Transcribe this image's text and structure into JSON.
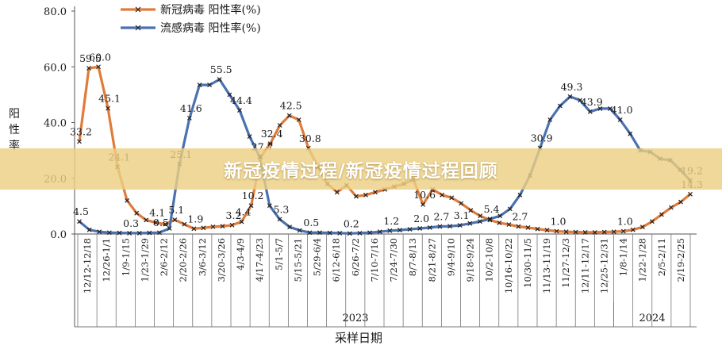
{
  "banner": {
    "title": "新冠疫情过程/新冠疫情过程回顾"
  },
  "chart_data": {
    "type": "line",
    "title": "",
    "xlabel": "采样日期",
    "ylabel": "阳性率",
    "ylim": [
      0,
      80
    ],
    "yticks": [
      "0.0",
      "20.0",
      "40.0",
      "60.0",
      "80.0"
    ],
    "year_labels": [
      "2023",
      "2024"
    ],
    "legend_position": "top",
    "grid": false,
    "tick_labels": [
      "12/12-12/18",
      "12/26-1/1",
      "1/9-1/15",
      "1/23-1/29",
      "2/6-2/12",
      "2/20-2/26",
      "3/6-3/12",
      "3/20-3/26",
      "4/3-4/9",
      "4/17-4/23",
      "5/1-5/7",
      "5/15-5/21",
      "5/29-6/4",
      "6/12-6/18",
      "6/26-7/2",
      "7/10-7/16",
      "7/24-7/30",
      "8/7-8/13",
      "8/21-8/27",
      "9/4-9/10",
      "9/18-9/24",
      "10/2-10/8",
      "10/16-10/22",
      "10/30-11/5",
      "11/13-11/19",
      "11/27-12/3",
      "12/11-12/17",
      "12/25-12/31",
      "1/8-1/14",
      "1/22-1/28",
      "2/5-2/11",
      "2/19-2/25"
    ],
    "series": [
      {
        "name": "新冠病毒 阳性率(%)",
        "color": "#E07B39",
        "values": [
          33.2,
          59.5,
          60.0,
          45.1,
          24.1,
          12.0,
          7.5,
          5.0,
          4.1,
          3.5,
          5.1,
          3.5,
          1.9,
          2.2,
          2.6,
          2.8,
          3.2,
          4.4,
          10.2,
          27.7,
          32.4,
          39.0,
          42.5,
          41.0,
          30.8,
          24.0,
          18.0,
          15.0,
          17.5,
          13.5,
          14.0,
          15.0,
          16.0,
          17.0,
          18.0,
          19.5,
          10.6,
          16.0,
          14.0,
          13.0,
          11.0,
          8.5,
          6.5,
          5.0,
          4.0,
          3.4,
          2.7,
          2.3,
          1.8,
          1.4,
          1.0,
          0.8,
          0.7,
          0.6,
          0.6,
          0.7,
          0.8,
          1.0,
          1.5,
          2.5,
          4.5,
          7.0,
          9.5,
          11.5,
          14.3
        ]
      },
      {
        "name": "流感病毒 阳性率(%)",
        "color": "#4A72B0",
        "values": [
          4.5,
          1.5,
          0.8,
          0.5,
          0.4,
          0.3,
          0.3,
          0.4,
          0.5,
          2.0,
          25.1,
          41.6,
          53.5,
          53.5,
          55.5,
          50.0,
          44.4,
          35.0,
          27.7,
          10.2,
          5.3,
          2.5,
          1.3,
          0.5,
          0.5,
          0.4,
          0.3,
          0.2,
          0.3,
          0.5,
          0.8,
          1.2,
          1.4,
          1.7,
          2.0,
          2.3,
          2.7,
          2.8,
          3.1,
          3.8,
          4.5,
          5.4,
          6.5,
          9.0,
          14.0,
          21.0,
          30.9,
          41.0,
          46.0,
          49.3,
          48.0,
          43.9,
          45.0,
          45.0,
          41.0,
          36.0,
          30.0,
          29.5,
          27.0,
          26.5,
          23.0,
          19.2
        ]
      }
    ],
    "data_labels": [
      {
        "text": "59.5",
        "series": 0,
        "index": 1
      },
      {
        "text": "60.0",
        "series": 0,
        "index": 2
      },
      {
        "text": "33.2",
        "series": 0,
        "index": 0
      },
      {
        "text": "45.1",
        "series": 0,
        "index": 3
      },
      {
        "text": "24.1",
        "series": 0,
        "index": 4
      },
      {
        "text": "4.1",
        "series": 0,
        "index": 8
      },
      {
        "text": "5.1",
        "series": 0,
        "index": 10
      },
      {
        "text": "1.9",
        "series": 0,
        "index": 12
      },
      {
        "text": "3.2",
        "series": 0,
        "index": 16
      },
      {
        "text": "4.4",
        "series": 0,
        "index": 17
      },
      {
        "text": "10.2",
        "series": 0,
        "index": 18
      },
      {
        "text": "27.7",
        "series": 0,
        "index": 19
      },
      {
        "text": "32.4",
        "series": 0,
        "index": 20
      },
      {
        "text": "42.5",
        "series": 0,
        "index": 22
      },
      {
        "text": "30.8",
        "series": 0,
        "index": 24
      },
      {
        "text": "10.6",
        "series": 0,
        "index": 36
      },
      {
        "text": "14.3",
        "series": 0,
        "index": 64
      },
      {
        "text": "4.5",
        "series": 1,
        "index": 0
      },
      {
        "text": "0.3",
        "series": 1,
        "index": 5
      },
      {
        "text": "0.5",
        "series": 1,
        "index": 8
      },
      {
        "text": "25.1",
        "series": 1,
        "index": 10
      },
      {
        "text": "41.6",
        "series": 1,
        "index": 11
      },
      {
        "text": "55.5",
        "series": 1,
        "index": 14
      },
      {
        "text": "44.4",
        "series": 1,
        "index": 16
      },
      {
        "text": "5.3",
        "series": 1,
        "index": 20
      },
      {
        "text": "0.5",
        "series": 1,
        "index": 23
      },
      {
        "text": "0.2",
        "series": 1,
        "index": 27
      },
      {
        "text": "1.2",
        "series": 1,
        "index": 31
      },
      {
        "text": "2.0",
        "series": 1,
        "index": 34
      },
      {
        "text": "2.7",
        "series": 1,
        "index": 36
      },
      {
        "text": "3.1",
        "series": 1,
        "index": 38
      },
      {
        "text": "5.4",
        "series": 1,
        "index": 41
      },
      {
        "text": "2.7",
        "series": 0,
        "index": 46
      },
      {
        "text": "1.0",
        "series": 0,
        "index": 50
      },
      {
        "text": "1.0",
        "series": 0,
        "index": 57
      },
      {
        "text": "30.9",
        "series": 1,
        "index": 46
      },
      {
        "text": "49.3",
        "series": 1,
        "index": 49
      },
      {
        "text": "43.9",
        "series": 1,
        "index": 51
      },
      {
        "text": "41.0",
        "series": 1,
        "index": 54
      },
      {
        "text": "19.2",
        "series": 1,
        "index": 61
      }
    ]
  }
}
